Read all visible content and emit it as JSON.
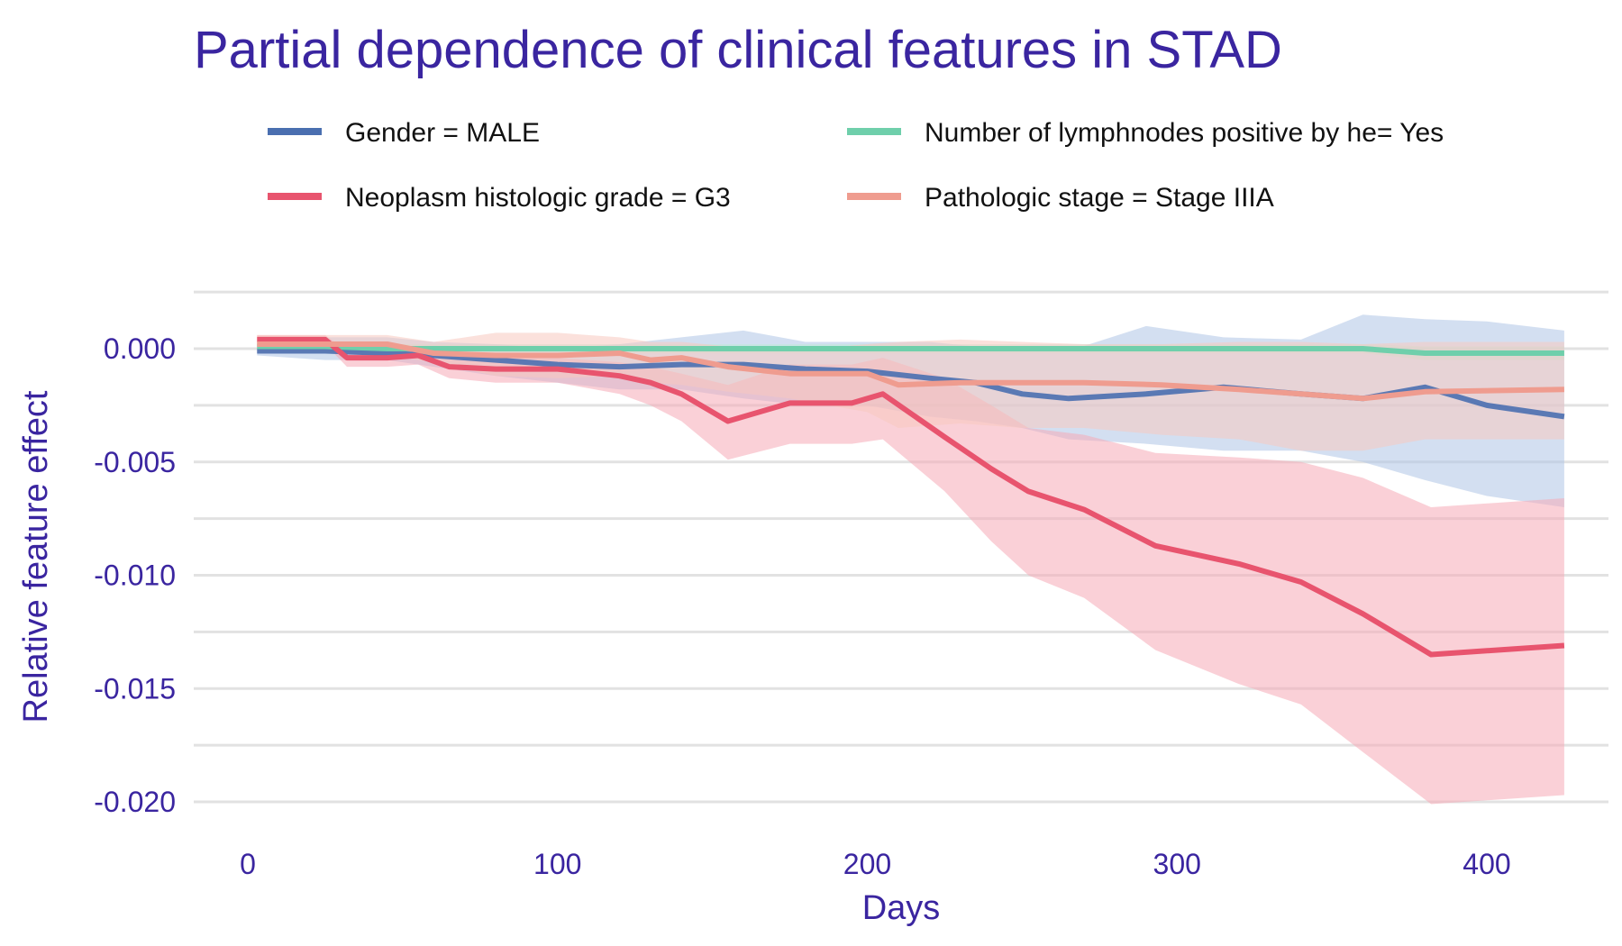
{
  "chart_data": {
    "type": "line",
    "title": "Partial dependence of clinical features in STAD",
    "xlabel": "Days",
    "ylabel": "Relative feature effect",
    "xlim": [
      -20,
      445
    ],
    "ylim": [
      -0.021,
      0.0035
    ],
    "xticks": [
      0,
      100,
      200,
      300,
      400
    ],
    "xtick_labels": [
      "0",
      "100",
      "200",
      "300",
      "400"
    ],
    "yticks": [
      0.0,
      -0.005,
      -0.01,
      -0.015,
      -0.02
    ],
    "ytick_labels": [
      "0.000",
      "-0.005",
      "-0.010",
      "-0.015",
      "-0.020"
    ],
    "grid": true,
    "legend_position": "top",
    "series": [
      {
        "name": "Gender = MALE",
        "color": "#4a6fb0",
        "band_color": "#aec4e6",
        "x": [
          3,
          25,
          45,
          60,
          80,
          100,
          120,
          140,
          160,
          180,
          200,
          220,
          235,
          250,
          265,
          290,
          315,
          340,
          360,
          380,
          400,
          425
        ],
        "y": [
          -0.0001,
          -0.0001,
          -0.0002,
          -0.0003,
          -0.0005,
          -0.0007,
          -0.0008,
          -0.0007,
          -0.0007,
          -0.0009,
          -0.001,
          -0.0013,
          -0.0015,
          -0.002,
          -0.0022,
          -0.002,
          -0.0017,
          -0.002,
          -0.0022,
          -0.0017,
          -0.0025,
          -0.003
        ],
        "upper": [
          0.0002,
          0.0005,
          0.0005,
          0.0003,
          0.0002,
          0.0,
          0.0002,
          0.0005,
          0.0008,
          0.0003,
          0.0003,
          0.0003,
          0.0001,
          0.0,
          -0.0001,
          0.001,
          0.0005,
          0.0004,
          0.0015,
          0.0013,
          0.0012,
          0.0008
        ],
        "lower": [
          -0.0003,
          -0.0005,
          -0.0005,
          -0.0008,
          -0.0012,
          -0.0015,
          -0.0018,
          -0.0018,
          -0.0022,
          -0.0025,
          -0.0025,
          -0.003,
          -0.0032,
          -0.0035,
          -0.004,
          -0.0042,
          -0.0045,
          -0.0045,
          -0.005,
          -0.0058,
          -0.0065,
          -0.007
        ]
      },
      {
        "name": "Number of lymphnodes positive by he= Yes",
        "color": "#6fcfab",
        "band_color": "#bfe9d7",
        "x": [
          3,
          25,
          45,
          60,
          80,
          100,
          120,
          140,
          160,
          180,
          200,
          220,
          235,
          250,
          265,
          290,
          315,
          340,
          360,
          380,
          400,
          425
        ],
        "y": [
          0.0001,
          0.0001,
          0.0,
          0.0,
          0.0,
          0.0,
          0.0,
          0.0,
          0.0,
          0.0,
          0.0,
          0.0,
          0.0,
          0.0,
          0.0,
          0.0,
          0.0,
          0.0,
          0.0,
          -0.0002,
          -0.0002,
          -0.0002
        ],
        "upper": [
          0.0003,
          0.0003,
          0.0002,
          0.0002,
          0.0002,
          0.0002,
          0.0002,
          0.0002,
          0.0002,
          0.0002,
          0.0002,
          0.0002,
          0.0002,
          0.0002,
          0.0002,
          0.0002,
          0.0002,
          0.0002,
          0.0002,
          0.0001,
          0.0001,
          0.0001
        ],
        "lower": [
          -0.0001,
          -0.0001,
          -0.0002,
          -0.0002,
          -0.0002,
          -0.0002,
          -0.0002,
          -0.0002,
          -0.0002,
          -0.0002,
          -0.0002,
          -0.0002,
          -0.0002,
          -0.0002,
          -0.0002,
          -0.0002,
          -0.0002,
          -0.0002,
          -0.0002,
          -0.0005,
          -0.0005,
          -0.0005
        ]
      },
      {
        "name": "Neoplasm histologic grade = G3",
        "color": "#e8546e",
        "band_color": "#f5aab7",
        "x": [
          3,
          25,
          32,
          45,
          55,
          65,
          80,
          100,
          120,
          130,
          140,
          155,
          175,
          195,
          205,
          225,
          240,
          252,
          270,
          293,
          320,
          340,
          360,
          382,
          425
        ],
        "y": [
          0.0004,
          0.0004,
          -0.0004,
          -0.0004,
          -0.0003,
          -0.0008,
          -0.0009,
          -0.0009,
          -0.0012,
          -0.0015,
          -0.002,
          -0.0032,
          -0.0024,
          -0.0024,
          -0.002,
          -0.0039,
          -0.0053,
          -0.0063,
          -0.0071,
          -0.0087,
          -0.0095,
          -0.0103,
          -0.0117,
          -0.0135,
          -0.0131
        ],
        "upper": [
          0.0006,
          0.0006,
          -0.0001,
          -0.0001,
          0.0,
          -0.0004,
          -0.0004,
          -0.0004,
          -0.0006,
          -0.0008,
          -0.0011,
          -0.0016,
          -0.0007,
          -0.0007,
          -0.0004,
          -0.0013,
          -0.0025,
          -0.0035,
          -0.0038,
          -0.0046,
          -0.0048,
          -0.005,
          -0.0057,
          -0.007,
          -0.0066
        ],
        "lower": [
          0.0002,
          0.0002,
          -0.0008,
          -0.0008,
          -0.0007,
          -0.0013,
          -0.0015,
          -0.0015,
          -0.002,
          -0.0025,
          -0.0032,
          -0.0049,
          -0.0042,
          -0.0042,
          -0.004,
          -0.0063,
          -0.0085,
          -0.01,
          -0.011,
          -0.0133,
          -0.0148,
          -0.0157,
          -0.0178,
          -0.0201,
          -0.0197
        ]
      },
      {
        "name": "Pathologic stage = Stage IIIA",
        "color": "#ef9c8f",
        "band_color": "#f7c9bf",
        "x": [
          3,
          25,
          45,
          60,
          80,
          100,
          120,
          130,
          140,
          155,
          175,
          200,
          210,
          230,
          250,
          270,
          295,
          320,
          340,
          360,
          380,
          425
        ],
        "y": [
          0.0002,
          0.0002,
          0.0002,
          -0.0002,
          -0.0003,
          -0.0003,
          -0.0002,
          -0.0005,
          -0.0004,
          -0.0008,
          -0.0011,
          -0.0011,
          -0.0016,
          -0.0015,
          -0.0015,
          -0.0015,
          -0.0016,
          -0.0018,
          -0.002,
          -0.0022,
          -0.0019,
          -0.0018
        ],
        "upper": [
          0.0006,
          0.0006,
          0.0006,
          0.0003,
          0.0007,
          0.0007,
          0.0005,
          0.0003,
          0.0003,
          0.0001,
          -0.0001,
          0.0002,
          0.0003,
          0.0004,
          0.0003,
          0.0002,
          0.0002,
          0.0003,
          0.0003,
          0.0002,
          0.0003,
          0.0003
        ],
        "lower": [
          -0.0002,
          -0.0002,
          -0.0003,
          -0.0006,
          -0.0012,
          -0.0013,
          -0.0012,
          -0.0015,
          -0.0016,
          -0.0019,
          -0.0022,
          -0.0028,
          -0.0035,
          -0.0033,
          -0.0035,
          -0.0035,
          -0.0038,
          -0.004,
          -0.0045,
          -0.0045,
          -0.004,
          -0.004
        ]
      }
    ]
  }
}
